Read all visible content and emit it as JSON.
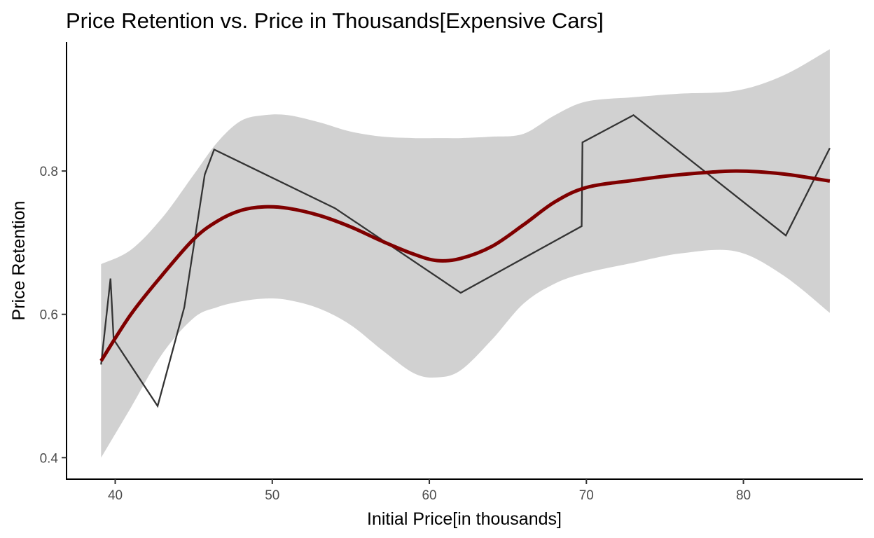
{
  "chart_data": {
    "type": "line",
    "title": "Price Retention vs. Price in Thousands[Expensive Cars]",
    "xlabel": "Initial Price[in thousands]",
    "ylabel": "Price Retention",
    "xlim": [
      36.9,
      87.6
    ],
    "ylim": [
      0.37,
      0.98
    ],
    "x_ticks": [
      40,
      50,
      60,
      70,
      80
    ],
    "y_ticks": [
      0.4,
      0.6,
      0.8
    ],
    "grid": false,
    "legend": "none",
    "series": [
      {
        "kind": "line",
        "color": "#333333",
        "points": [
          [
            39.1,
            0.53
          ],
          [
            39.7,
            0.65
          ],
          [
            39.9,
            0.565
          ],
          [
            42.7,
            0.472
          ],
          [
            44.4,
            0.61
          ],
          [
            45.7,
            0.795
          ],
          [
            46.3,
            0.83
          ],
          [
            54.0,
            0.748
          ],
          [
            62.0,
            0.63
          ],
          [
            69.7,
            0.723
          ],
          [
            69.75,
            0.84
          ],
          [
            73.0,
            0.878
          ],
          [
            82.7,
            0.71
          ],
          [
            85.5,
            0.832
          ]
        ]
      },
      {
        "kind": "smooth",
        "color": "#7f0000",
        "band_color": "#d1d1d1",
        "points": [
          [
            39.1,
            0.535,
            0.4,
            0.67
          ],
          [
            41.0,
            0.6,
            0.47,
            0.69
          ],
          [
            43.0,
            0.655,
            0.545,
            0.735
          ],
          [
            45.0,
            0.705,
            0.595,
            0.795
          ],
          [
            46.5,
            0.73,
            0.61,
            0.84
          ],
          [
            48.0,
            0.745,
            0.618,
            0.87
          ],
          [
            49.5,
            0.75,
            0.622,
            0.878
          ],
          [
            51.0,
            0.748,
            0.62,
            0.878
          ],
          [
            53.0,
            0.738,
            0.608,
            0.868
          ],
          [
            55.0,
            0.722,
            0.585,
            0.855
          ],
          [
            57.0,
            0.702,
            0.55,
            0.848
          ],
          [
            59.0,
            0.684,
            0.518,
            0.846
          ],
          [
            60.5,
            0.675,
            0.512,
            0.846
          ],
          [
            62.0,
            0.678,
            0.522,
            0.846
          ],
          [
            64.0,
            0.695,
            0.565,
            0.848
          ],
          [
            66.0,
            0.725,
            0.615,
            0.852
          ],
          [
            68.0,
            0.757,
            0.643,
            0.878
          ],
          [
            70.0,
            0.777,
            0.658,
            0.897
          ],
          [
            73.0,
            0.787,
            0.672,
            0.903
          ],
          [
            76.0,
            0.795,
            0.685,
            0.908
          ],
          [
            79.5,
            0.8,
            0.688,
            0.912
          ],
          [
            82.5,
            0.796,
            0.655,
            0.933
          ],
          [
            85.5,
            0.786,
            0.602,
            0.97
          ]
        ]
      }
    ]
  }
}
